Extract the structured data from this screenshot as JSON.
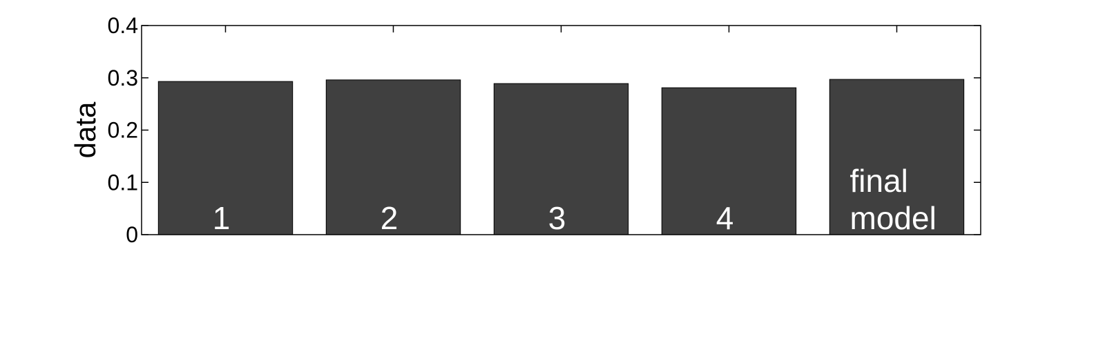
{
  "chart_data": {
    "type": "bar",
    "title": "",
    "xlabel": "",
    "ylabel": "data",
    "ylim": [
      0,
      0.4
    ],
    "yticks": [
      0,
      0.1,
      0.2,
      0.3,
      0.4
    ],
    "ytick_labels": [
      "0",
      "0.1",
      "0.2",
      "0.3",
      "0.4"
    ],
    "categories": [
      "1",
      "2",
      "3",
      "4",
      "final model"
    ],
    "bar_labels": [
      [
        "1"
      ],
      [
        "2"
      ],
      [
        "3"
      ],
      [
        "4"
      ],
      [
        "final",
        "model"
      ]
    ],
    "values": [
      0.293,
      0.296,
      0.289,
      0.281,
      0.297
    ],
    "grid": false,
    "legend": "none",
    "colors": {
      "bar": "#404040",
      "bar_label": "#ffffff",
      "axis": "#000000",
      "background": "#ffffff"
    }
  }
}
